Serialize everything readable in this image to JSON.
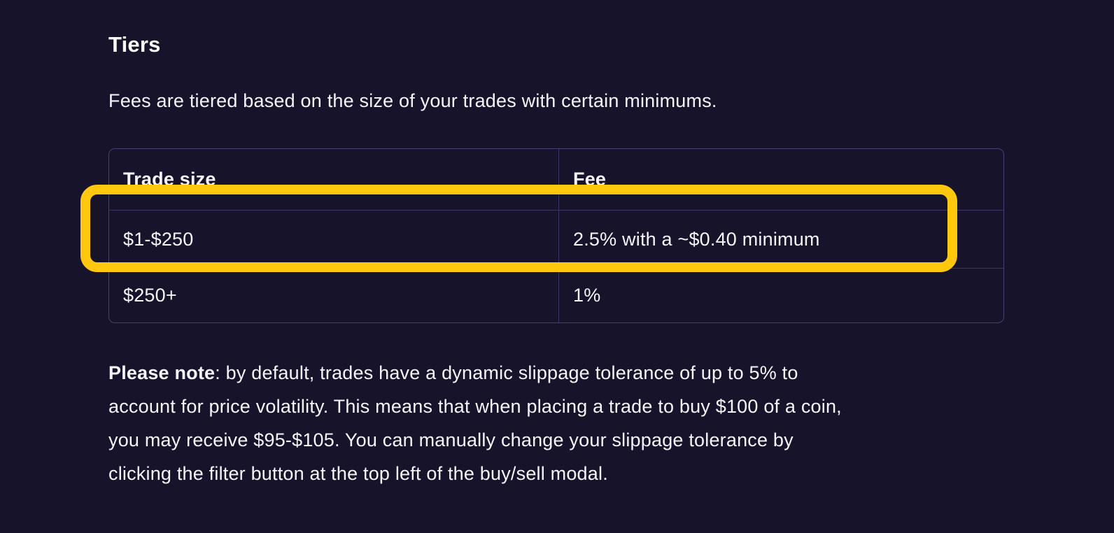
{
  "page": {
    "title": "Tiers",
    "intro": "Fees are tiered based on the size of your trades with certain minimums."
  },
  "table": {
    "columns": [
      "Trade size",
      "Fee"
    ],
    "rows": [
      {
        "trade_size": "$1-$250",
        "fee": "2.5% with a ~$0.40 minimum",
        "highlighted": true
      },
      {
        "trade_size": "$250+",
        "fee": "1%",
        "highlighted": false
      }
    ]
  },
  "highlight": {
    "shape": "rounded-rectangle-outline",
    "target_row": "$1-$250",
    "color": "#FFC70D"
  },
  "note": {
    "bold_label": "Please note",
    "lines": [
      ": by default, trades have a dynamic slippage tolerance of up to 5% to",
      "account for price volatility. This means that when placing a trade to buy $100 of a coin,",
      "you may receive $95-$105. You can manually change your slippage tolerance by",
      "clicking the filter button at the top left of the buy/sell modal."
    ]
  },
  "colors": {
    "background": "#16132B",
    "table_border": "#454170",
    "divider": "#393564",
    "text": "#F5F4F9",
    "highlight": "#FFC70D"
  }
}
